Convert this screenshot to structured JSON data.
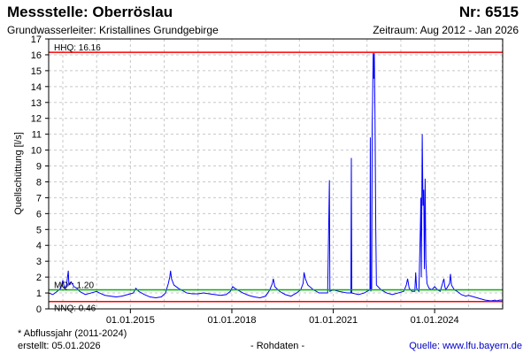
{
  "header": {
    "station": "Messstelle: Oberröslau",
    "number": "Nr: 6515",
    "aquifer": "Grundwasserleiter: Kristallines Grundgebirge",
    "period": "Zeitraum: Aug 2012 - Jan 2026"
  },
  "footer": {
    "note": "* Abflussjahr (2011-2024)",
    "created": "erstellt:  05.01.2026",
    "raw": "- Rohdaten -",
    "source": "Quelle:  www.lfu.bayern.de"
  },
  "colors": {
    "series": "#0000ff",
    "hhq": "#ff0000",
    "nnq": "#ff0000",
    "mq": "#00b400",
    "grid": "#c8c8c8"
  },
  "chart_data": {
    "type": "line",
    "title": "",
    "xlabel": "",
    "ylabel": "Quellschüttung [l/s]",
    "xlim": [
      "2012-08-01",
      "2026-01-05"
    ],
    "ylim": [
      0,
      17
    ],
    "yticks": [
      0,
      1,
      2,
      3,
      4,
      5,
      6,
      7,
      8,
      9,
      10,
      11,
      12,
      13,
      14,
      15,
      16,
      17
    ],
    "xticks": [
      {
        "date": "2015-01-01",
        "label": "01.01.2015"
      },
      {
        "date": "2018-01-01",
        "label": "01.01.2018"
      },
      {
        "date": "2021-01-01",
        "label": "01.01.2021"
      },
      {
        "date": "2024-01-01",
        "label": "01.01.2024"
      }
    ],
    "grid": true,
    "reference_lines": [
      {
        "name": "HHQ",
        "label": "HHQ: 16.16",
        "value": 16.16,
        "color": "#ff0000"
      },
      {
        "name": "MQ",
        "label": "MQ*: 1.20",
        "value": 1.2,
        "color": "#00b400"
      },
      {
        "name": "NNQ",
        "label": "NNQ: 0.46",
        "value": 0.46,
        "color": "#ff0000"
      }
    ],
    "series": [
      {
        "color": "#0000ff",
        "points": [
          [
            "2012-08-01",
            1.0
          ],
          [
            "2012-09-15",
            0.9
          ],
          [
            "2012-11-01",
            1.1
          ],
          [
            "2012-12-10",
            1.3
          ],
          [
            "2013-01-01",
            1.8
          ],
          [
            "2013-01-20",
            1.3
          ],
          [
            "2013-02-10",
            1.5
          ],
          [
            "2013-03-01",
            2.4
          ],
          [
            "2013-03-08",
            1.5
          ],
          [
            "2013-04-01",
            1.7
          ],
          [
            "2013-05-01",
            1.4
          ],
          [
            "2013-06-01",
            1.3
          ],
          [
            "2013-07-01",
            1.1
          ],
          [
            "2013-09-01",
            0.9
          ],
          [
            "2013-11-01",
            1.0
          ],
          [
            "2014-01-01",
            1.1
          ],
          [
            "2014-02-01",
            1.0
          ],
          [
            "2014-04-01",
            0.85
          ],
          [
            "2014-06-01",
            0.8
          ],
          [
            "2014-08-01",
            0.75
          ],
          [
            "2014-10-01",
            0.8
          ],
          [
            "2014-12-01",
            0.9
          ],
          [
            "2015-02-01",
            1.0
          ],
          [
            "2015-03-01",
            1.3
          ],
          [
            "2015-04-01",
            1.1
          ],
          [
            "2015-06-01",
            0.9
          ],
          [
            "2015-08-01",
            0.75
          ],
          [
            "2015-10-01",
            0.7
          ],
          [
            "2015-12-01",
            0.75
          ],
          [
            "2016-01-15",
            1.0
          ],
          [
            "2016-02-15",
            1.6
          ],
          [
            "2016-03-01",
            2.0
          ],
          [
            "2016-03-10",
            2.4
          ],
          [
            "2016-03-20",
            1.9
          ],
          [
            "2016-04-15",
            1.5
          ],
          [
            "2016-06-01",
            1.3
          ],
          [
            "2016-07-01",
            1.2
          ],
          [
            "2016-09-01",
            1.0
          ],
          [
            "2016-11-01",
            0.95
          ],
          [
            "2017-01-01",
            0.95
          ],
          [
            "2017-03-01",
            1.0
          ],
          [
            "2017-05-01",
            0.95
          ],
          [
            "2017-07-01",
            0.9
          ],
          [
            "2017-09-01",
            0.85
          ],
          [
            "2017-11-01",
            0.9
          ],
          [
            "2017-12-15",
            1.1
          ],
          [
            "2018-01-10",
            1.4
          ],
          [
            "2018-02-01",
            1.3
          ],
          [
            "2018-03-01",
            1.2
          ],
          [
            "2018-05-01",
            1.0
          ],
          [
            "2018-07-01",
            0.85
          ],
          [
            "2018-09-01",
            0.75
          ],
          [
            "2018-11-01",
            0.7
          ],
          [
            "2019-01-01",
            0.8
          ],
          [
            "2019-02-15",
            1.2
          ],
          [
            "2019-03-15",
            1.6
          ],
          [
            "2019-03-25",
            1.9
          ],
          [
            "2019-04-10",
            1.4
          ],
          [
            "2019-06-01",
            1.1
          ],
          [
            "2019-08-01",
            0.9
          ],
          [
            "2019-10-01",
            0.8
          ],
          [
            "2019-12-01",
            1.0
          ],
          [
            "2020-01-15",
            1.2
          ],
          [
            "2020-02-10",
            1.6
          ],
          [
            "2020-02-20",
            2.3
          ],
          [
            "2020-03-05",
            1.9
          ],
          [
            "2020-04-01",
            1.5
          ],
          [
            "2020-06-01",
            1.2
          ],
          [
            "2020-08-01",
            1.0
          ],
          [
            "2020-10-01",
            1.0
          ],
          [
            "2020-11-01",
            1.0
          ],
          [
            "2020-11-20",
            8.1
          ],
          [
            "2020-11-25",
            1.1
          ],
          [
            "2021-01-01",
            1.2
          ],
          [
            "2021-03-01",
            1.1
          ],
          [
            "2021-06-01",
            1.0
          ],
          [
            "2021-07-10",
            1.0
          ],
          [
            "2021-07-15",
            9.5
          ],
          [
            "2021-07-20",
            1.0
          ],
          [
            "2021-10-01",
            0.9
          ],
          [
            "2021-12-01",
            1.0
          ],
          [
            "2022-02-01",
            1.2
          ],
          [
            "2022-02-05",
            10.8
          ],
          [
            "2022-02-10",
            1.1
          ],
          [
            "2022-02-20",
            1.3
          ],
          [
            "2022-02-25",
            11.6
          ],
          [
            "2022-03-01",
            12.8
          ],
          [
            "2022-03-08",
            16.1
          ],
          [
            "2022-03-15",
            14.5
          ],
          [
            "2022-03-20",
            16.1
          ],
          [
            "2022-03-28",
            12.0
          ],
          [
            "2022-04-05",
            5.0
          ],
          [
            "2022-04-12",
            1.5
          ],
          [
            "2022-06-01",
            1.2
          ],
          [
            "2022-08-01",
            1.0
          ],
          [
            "2022-10-01",
            0.9
          ],
          [
            "2022-12-01",
            1.0
          ],
          [
            "2023-02-01",
            1.1
          ],
          [
            "2023-03-01",
            1.5
          ],
          [
            "2023-03-15",
            1.9
          ],
          [
            "2023-04-01",
            1.3
          ],
          [
            "2023-05-01",
            1.1
          ],
          [
            "2023-06-01",
            1.1
          ],
          [
            "2023-06-10",
            2.3
          ],
          [
            "2023-06-20",
            1.3
          ],
          [
            "2023-07-15",
            1.1
          ],
          [
            "2023-08-01",
            5.5
          ],
          [
            "2023-08-05",
            7.0
          ],
          [
            "2023-08-10",
            2.0
          ],
          [
            "2023-08-20",
            11.0
          ],
          [
            "2023-08-28",
            6.5
          ],
          [
            "2023-09-05",
            7.5
          ],
          [
            "2023-09-12",
            2.5
          ],
          [
            "2023-09-20",
            8.2
          ],
          [
            "2023-09-28",
            3.0
          ],
          [
            "2023-10-10",
            1.6
          ],
          [
            "2023-11-01",
            1.3
          ],
          [
            "2023-12-01",
            1.2
          ],
          [
            "2024-01-01",
            1.4
          ],
          [
            "2024-02-01",
            1.2
          ],
          [
            "2024-03-01",
            1.1
          ],
          [
            "2024-04-10",
            1.9
          ],
          [
            "2024-04-20",
            1.4
          ],
          [
            "2024-05-01",
            1.2
          ],
          [
            "2024-06-10",
            1.6
          ],
          [
            "2024-06-20",
            2.2
          ],
          [
            "2024-07-01",
            1.5
          ],
          [
            "2024-08-01",
            1.2
          ],
          [
            "2024-09-01",
            1.1
          ],
          [
            "2024-10-15",
            0.9
          ],
          [
            "2024-12-01",
            0.8
          ],
          [
            "2025-01-01",
            0.85
          ],
          [
            "2025-03-01",
            0.75
          ],
          [
            "2025-05-01",
            0.65
          ],
          [
            "2025-07-01",
            0.55
          ],
          [
            "2025-09-01",
            0.5
          ],
          [
            "2025-10-15",
            0.55
          ],
          [
            "2025-11-01",
            0.5
          ],
          [
            "2025-12-01",
            0.55
          ],
          [
            "2026-01-05",
            0.55
          ]
        ]
      }
    ]
  }
}
